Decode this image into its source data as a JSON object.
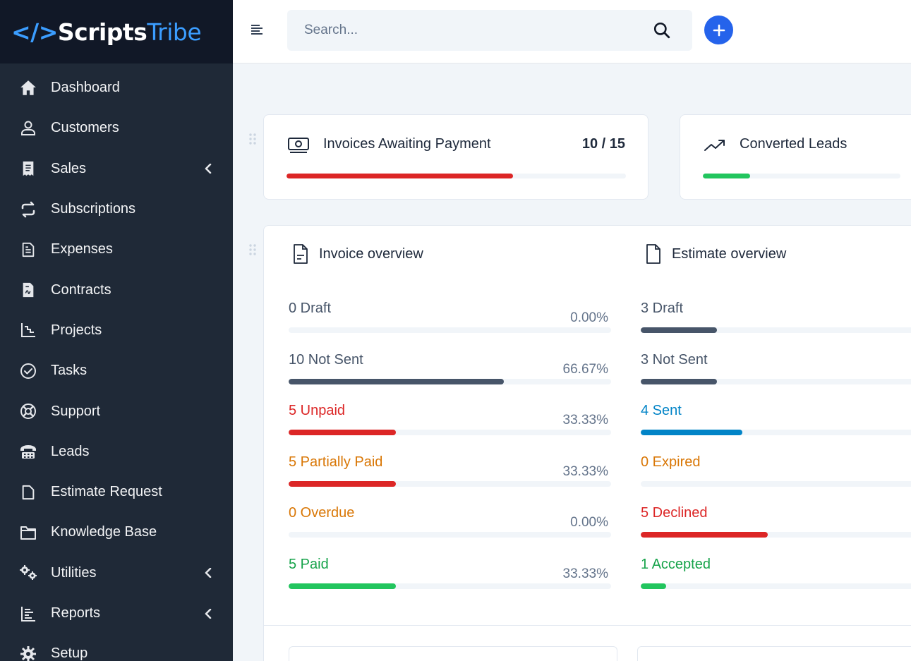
{
  "brand": {
    "lt": "</>",
    "scripts": "Scripts",
    "tribe": "Tribe"
  },
  "sidebar": {
    "items": [
      {
        "label": "Dashboard",
        "icon": "home-icon"
      },
      {
        "label": "Customers",
        "icon": "user-icon"
      },
      {
        "label": "Sales",
        "icon": "receipt-icon",
        "chevron": true
      },
      {
        "label": "Subscriptions",
        "icon": "repeat-icon"
      },
      {
        "label": "Expenses",
        "icon": "file-text-icon"
      },
      {
        "label": "Contracts",
        "icon": "contract-icon"
      },
      {
        "label": "Projects",
        "icon": "chart-steps-icon"
      },
      {
        "label": "Tasks",
        "icon": "check-circle-icon"
      },
      {
        "label": "Support",
        "icon": "lifebuoy-icon"
      },
      {
        "label": "Leads",
        "icon": "phone-icon"
      },
      {
        "label": "Estimate Request",
        "icon": "document-icon"
      },
      {
        "label": "Knowledge Base",
        "icon": "folder-icon"
      },
      {
        "label": "Utilities",
        "icon": "gears-icon",
        "chevron": true
      },
      {
        "label": "Reports",
        "icon": "bar-list-icon",
        "chevron": true
      },
      {
        "label": "Setup",
        "icon": "gear-icon"
      }
    ]
  },
  "topbar": {
    "search_placeholder": "Search..."
  },
  "stats": {
    "invoices": {
      "title": "Invoices Awaiting Payment",
      "value": "10 / 15",
      "progress": 0.6667,
      "color": "#dc2626"
    },
    "leads": {
      "title": "Converted Leads",
      "progress": 0.24,
      "color": "#22c55e"
    }
  },
  "invoice_overview": {
    "title": "Invoice overview",
    "rows": [
      {
        "label": "0 Draft",
        "pct": "0.00%",
        "value": 0,
        "tone": "gray",
        "color": "#475569"
      },
      {
        "label": "10 Not Sent",
        "pct": "66.67%",
        "value": 0.6667,
        "tone": "gray",
        "color": "#475569"
      },
      {
        "label": "5 Unpaid",
        "pct": "33.33%",
        "value": 0.3333,
        "tone": "red",
        "color": "#dc2626"
      },
      {
        "label": "5 Partially Paid",
        "pct": "33.33%",
        "value": 0.3333,
        "tone": "orange",
        "color": "#dc2626"
      },
      {
        "label": "0 Overdue",
        "pct": "0.00%",
        "value": 0,
        "tone": "orange",
        "color": "#d97706"
      },
      {
        "label": "5 Paid",
        "pct": "33.33%",
        "value": 0.3333,
        "tone": "green",
        "color": "#22c55e"
      }
    ]
  },
  "estimate_overview": {
    "title": "Estimate overview",
    "rows": [
      {
        "label": "3 Draft",
        "value": 0.2727,
        "tone": "gray",
        "color": "#475569"
      },
      {
        "label": "3 Not Sent",
        "value": 0.2727,
        "tone": "gray",
        "color": "#475569"
      },
      {
        "label": "4 Sent",
        "value": 0.3636,
        "tone": "blue",
        "color": "#0284c7"
      },
      {
        "label": "0 Expired",
        "value": 0,
        "tone": "orange",
        "color": "#d97706"
      },
      {
        "label": "5 Declined",
        "value": 0.4545,
        "tone": "red",
        "color": "#dc2626"
      },
      {
        "label": "1 Accepted",
        "value": 0.0909,
        "tone": "green",
        "color": "#22c55e"
      }
    ]
  }
}
